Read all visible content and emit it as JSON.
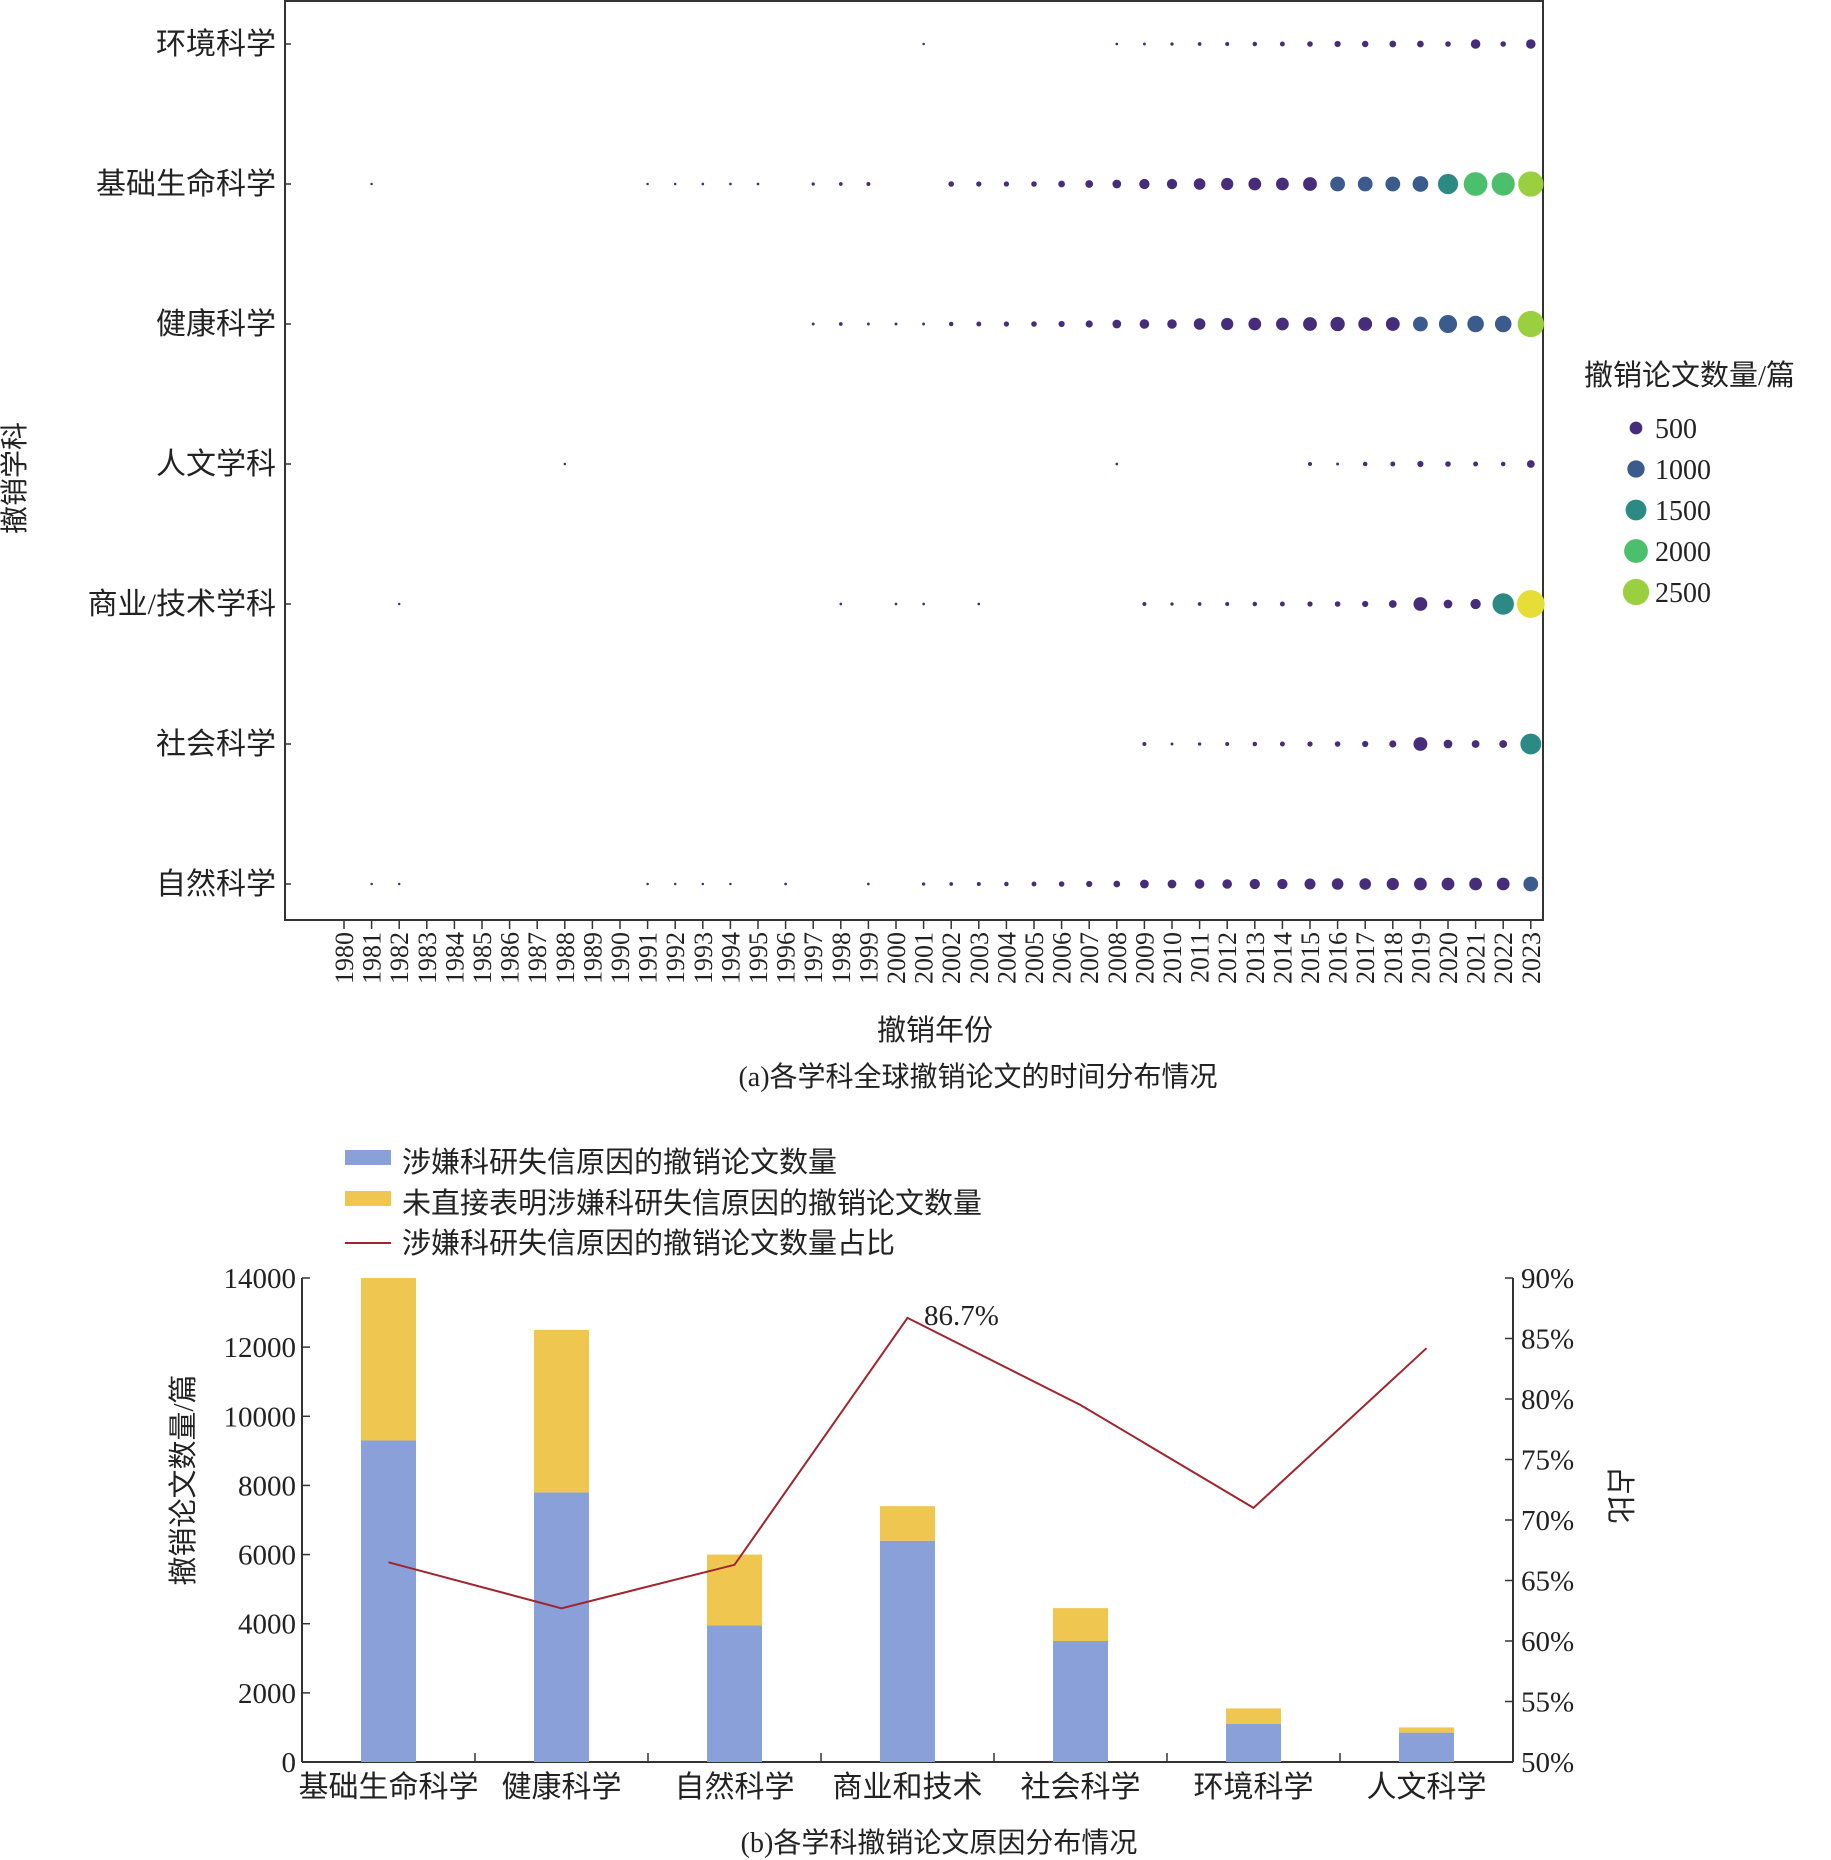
{
  "chart_data": [
    {
      "type": "scatter",
      "caption": "(a)各学科全球撤销论文的时间分布情况",
      "xlabel": "撤销年份",
      "ylabel": "撤销学科",
      "x": [
        "1980",
        "1981",
        "1982",
        "1983",
        "1984",
        "1985",
        "1986",
        "1987",
        "1988",
        "1989",
        "1990",
        "1991",
        "1992",
        "1993",
        "1994",
        "1995",
        "1996",
        "1997",
        "1998",
        "1999",
        "2000",
        "2001",
        "2002",
        "2003",
        "2004",
        "2005",
        "2006",
        "2007",
        "2008",
        "2009",
        "2010",
        "2011",
        "2012",
        "2013",
        "2014",
        "2015",
        "2016",
        "2017",
        "2018",
        "2019",
        "2020",
        "2021",
        "2022",
        "2023"
      ],
      "categories": [
        "环境科学",
        "基础生命科学",
        "健康科学",
        "人文学科",
        "商业/技术学科",
        "社会科学",
        "自然科学"
      ],
      "legend": {
        "title": "撤销论文数量/篇",
        "placement": "right",
        "entries": [
          {
            "label": "500",
            "value": 500,
            "color": "#472c7a"
          },
          {
            "label": "1000",
            "value": 1000,
            "color": "#3b5b8d"
          },
          {
            "label": "1500",
            "value": 1500,
            "color": "#2c8a84"
          },
          {
            "label": "2000",
            "value": 2000,
            "color": "#4cbf6c"
          },
          {
            "label": "2500",
            "value": 2500,
            "color": "#9ad03f"
          }
        ]
      },
      "color_scale": [
        "#472c7a",
        "#3b5b8d",
        "#2c8a84",
        "#4cbf6c",
        "#9ad03f",
        "#e6de37"
      ],
      "series": [
        {
          "category": "环境科学",
          "values": {
            "2001": 2,
            "2008": 3,
            "2009": 5,
            "2010": 10,
            "2011": 15,
            "2012": 20,
            "2013": 30,
            "2014": 40,
            "2015": 60,
            "2016": 80,
            "2017": 90,
            "2018": 100,
            "2019": 100,
            "2020": 60,
            "2021": 250,
            "2022": 60,
            "2023": 250
          }
        },
        {
          "category": "基础生命科学",
          "values": {
            "1981": 2,
            "1991": 2,
            "1992": 2,
            "1993": 3,
            "1994": 3,
            "1995": 3,
            "1997": 10,
            "1998": 15,
            "1999": 20,
            "2002": 60,
            "2003": 50,
            "2004": 50,
            "2005": 60,
            "2006": 100,
            "2007": 150,
            "2008": 200,
            "2009": 300,
            "2010": 300,
            "2011": 400,
            "2012": 450,
            "2013": 500,
            "2014": 500,
            "2015": 600,
            "2016": 700,
            "2017": 700,
            "2018": 700,
            "2019": 800,
            "2020": 1400,
            "2021": 2000,
            "2022": 1900,
            "2023": 2300
          }
        },
        {
          "category": "健康科学",
          "values": {
            "1997": 5,
            "1998": 15,
            "1999": 5,
            "2000": 5,
            "2001": 5,
            "2002": 30,
            "2003": 40,
            "2004": 50,
            "2005": 60,
            "2006": 80,
            "2007": 120,
            "2008": 200,
            "2009": 250,
            "2010": 250,
            "2011": 400,
            "2012": 450,
            "2013": 500,
            "2014": 500,
            "2015": 600,
            "2016": 650,
            "2017": 600,
            "2018": 600,
            "2019": 700,
            "2020": 1100,
            "2021": 900,
            "2022": 900,
            "2023": 2500
          }
        },
        {
          "category": "人文学科",
          "values": {
            "1988": 2,
            "2008": 3,
            "2015": 20,
            "2016": 5,
            "2017": 30,
            "2018": 40,
            "2019": 80,
            "2020": 60,
            "2021": 40,
            "2022": 30,
            "2023": 150
          }
        },
        {
          "category": "商业/技术学科",
          "values": {
            "1982": 2,
            "1998": 3,
            "2000": 3,
            "2001": 3,
            "2003": 3,
            "2009": 20,
            "2010": 10,
            "2011": 15,
            "2012": 20,
            "2013": 30,
            "2014": 40,
            "2015": 50,
            "2016": 60,
            "2017": 80,
            "2018": 150,
            "2019": 600,
            "2020": 200,
            "2021": 300,
            "2022": 1600,
            "2023": 2800
          }
        },
        {
          "category": "社会科学",
          "values": {
            "2009": 20,
            "2010": 5,
            "2011": 10,
            "2012": 20,
            "2013": 30,
            "2014": 40,
            "2015": 50,
            "2016": 60,
            "2017": 80,
            "2018": 120,
            "2019": 600,
            "2020": 200,
            "2021": 150,
            "2022": 150,
            "2023": 1500
          }
        },
        {
          "category": "自然科学",
          "values": {
            "1981": 2,
            "1982": 2,
            "1991": 2,
            "1992": 2,
            "1993": 2,
            "1994": 2,
            "1996": 3,
            "1999": 3,
            "2001": 10,
            "2002": 15,
            "2003": 20,
            "2004": 30,
            "2005": 40,
            "2006": 60,
            "2007": 80,
            "2008": 100,
            "2009": 200,
            "2010": 200,
            "2011": 250,
            "2012": 250,
            "2013": 300,
            "2014": 300,
            "2015": 350,
            "2016": 400,
            "2017": 400,
            "2018": 450,
            "2019": 500,
            "2020": 500,
            "2021": 500,
            "2022": 500,
            "2023": 700
          }
        }
      ]
    },
    {
      "type": "bar",
      "stacked": true,
      "caption": "(b)各学科撤销论文原因分布情况",
      "categories": [
        "基础生命科学",
        "健康科学",
        "自然科学",
        "商业和技术",
        "社会科学",
        "环境科学",
        "人文科学"
      ],
      "ylabel": "撤销论文数量/篇",
      "y2label": "占比",
      "ylim": [
        0,
        14000
      ],
      "yticks": [
        "0",
        "2000",
        "4000",
        "6000",
        "8000",
        "10000",
        "12000",
        "14000"
      ],
      "y2lim": [
        50,
        90
      ],
      "y2ticks": [
        "50%",
        "55%",
        "60%",
        "65%",
        "70%",
        "75%",
        "80%",
        "85%",
        "90%"
      ],
      "annotation": "86.7%",
      "series": [
        {
          "name": "涉嫌科研失信原因的撤销论文数量",
          "color": "#89a1d8",
          "values": [
            9300,
            7800,
            3950,
            6400,
            3500,
            1100,
            850
          ]
        },
        {
          "name": "未直接表明涉嫌科研失信原因的撤销论文数量",
          "color": "#efc64f",
          "values": [
            4700,
            4700,
            2050,
            1000,
            950,
            450,
            150
          ]
        },
        {
          "name": "涉嫌科研失信原因的撤销论文数量占比",
          "color": "#a0252d",
          "axis": "right",
          "values": [
            66.5,
            62.7,
            66.3,
            86.7,
            79.5,
            71.0,
            84.2
          ]
        }
      ]
    }
  ]
}
